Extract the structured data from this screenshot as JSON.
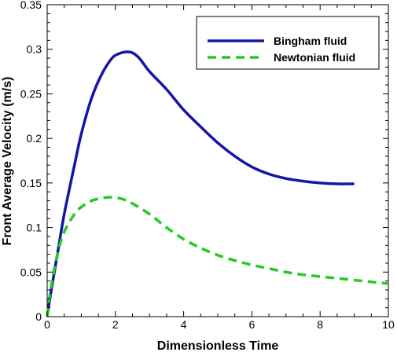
{
  "chart_data": {
    "type": "line",
    "xlabel": "Dimensionless Time",
    "ylabel": "Front Average Velocity (m/s)",
    "xlim": [
      0,
      10
    ],
    "ylim": [
      0,
      0.35
    ],
    "xticks": [
      0,
      2,
      4,
      6,
      8,
      10
    ],
    "yticks": [
      0,
      0.05,
      0.1,
      0.15,
      0.2,
      0.25,
      0.3,
      0.35
    ],
    "xtick_labels": [
      "0",
      "2",
      "4",
      "6",
      "8",
      "10"
    ],
    "ytick_labels": [
      "0",
      "0.05",
      "0.1",
      "0.15",
      "0.2",
      "0.25",
      "0.3",
      "0.35"
    ],
    "grid": false,
    "legend_position": "top-right",
    "series": [
      {
        "name": "Bingham fluid",
        "color": "#1515a8",
        "style": "solid",
        "x": [
          0,
          0.1,
          0.3,
          0.5,
          0.8,
          1.0,
          1.3,
          1.6,
          1.9,
          2.1,
          2.3,
          2.5,
          2.7,
          3.0,
          3.5,
          4.0,
          4.5,
          5.0,
          5.5,
          6.0,
          6.5,
          7.0,
          7.5,
          8.0,
          8.5,
          9.0
        ],
        "y": [
          0,
          0.025,
          0.07,
          0.115,
          0.17,
          0.205,
          0.245,
          0.272,
          0.29,
          0.295,
          0.297,
          0.296,
          0.29,
          0.275,
          0.255,
          0.232,
          0.213,
          0.195,
          0.18,
          0.168,
          0.16,
          0.155,
          0.152,
          0.15,
          0.149,
          0.149
        ]
      },
      {
        "name": "Newtonian fluid",
        "color": "#22cc22",
        "style": "dashed",
        "x": [
          0,
          0.1,
          0.3,
          0.5,
          0.8,
          1.0,
          1.3,
          1.6,
          1.9,
          2.2,
          2.5,
          3.0,
          3.5,
          4.0,
          4.5,
          5.0,
          5.5,
          6.0,
          6.5,
          7.0,
          7.5,
          8.0,
          8.5,
          9.0,
          9.5,
          10.0
        ],
        "y": [
          0,
          0.03,
          0.07,
          0.095,
          0.115,
          0.123,
          0.13,
          0.133,
          0.134,
          0.132,
          0.127,
          0.115,
          0.1,
          0.087,
          0.077,
          0.069,
          0.063,
          0.058,
          0.054,
          0.05,
          0.047,
          0.045,
          0.043,
          0.041,
          0.039,
          0.037
        ]
      }
    ]
  }
}
